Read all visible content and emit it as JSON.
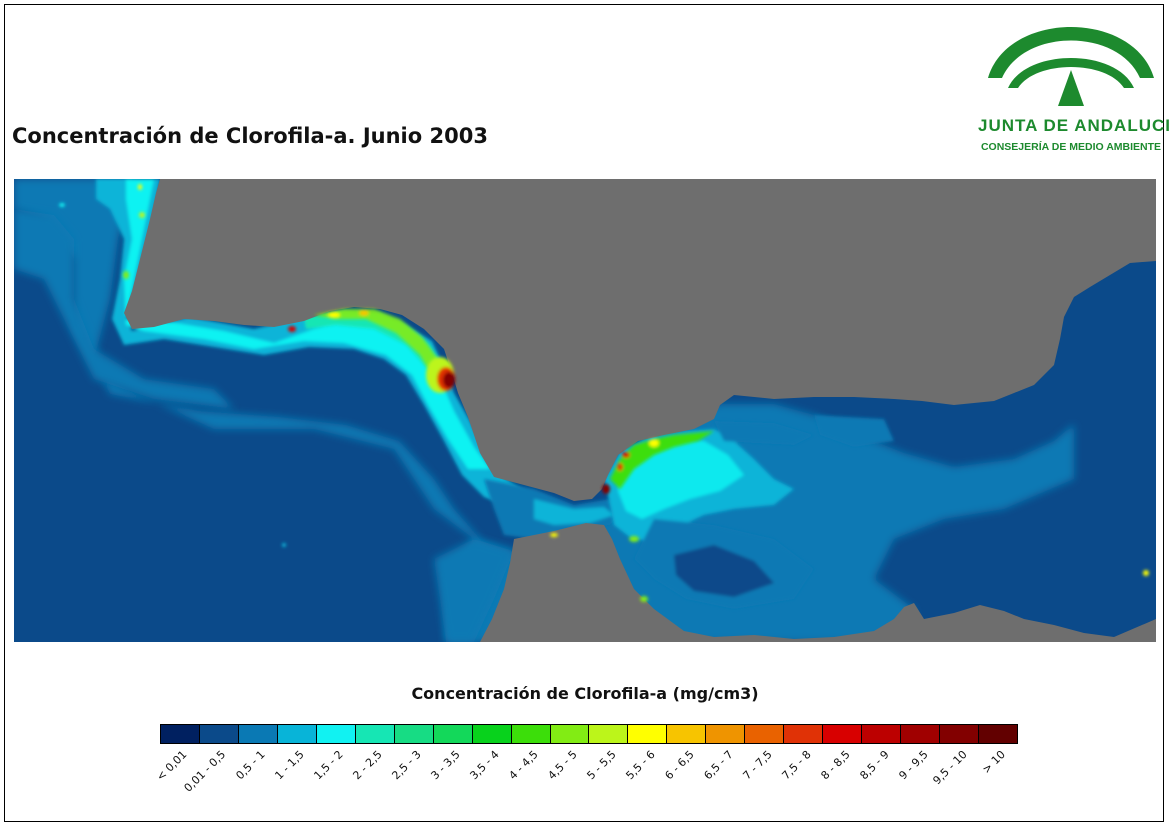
{
  "title": "Concentración de Clorofila-a. Junio 2003",
  "logo": {
    "line1": "JUNTA DE ANDALUCIA",
    "line2": "CONSEJERÍA DE MEDIO AMBIENTE",
    "color": "#1d8a2e"
  },
  "map": {
    "land_color": "#6e6e6e",
    "open_sea_color": "#0b4a8a"
  },
  "legend": {
    "title": "Concentración de Clorofila-a (mg/cm3)",
    "classes": [
      {
        "label": "< 0,01",
        "color": "#002060"
      },
      {
        "label": "0,01 - 0,5",
        "color": "#0b4a8a"
      },
      {
        "label": "0,5 - 1",
        "color": "#0a79b4"
      },
      {
        "label": "1 - 1,5",
        "color": "#08b4d8"
      },
      {
        "label": "1,5 - 2",
        "color": "#11f2f2"
      },
      {
        "label": "2 - 2,5",
        "color": "#16e6b4"
      },
      {
        "label": "2,5 - 3",
        "color": "#17dc84"
      },
      {
        "label": "3 - 3,5",
        "color": "#13d85a"
      },
      {
        "label": "3,5 - 4",
        "color": "#08d21c"
      },
      {
        "label": "4 - 4,5",
        "color": "#3cde0a"
      },
      {
        "label": "4,5 - 5",
        "color": "#82ec14"
      },
      {
        "label": "5 - 5,5",
        "color": "#bcf51a"
      },
      {
        "label": "5,5 - 6",
        "color": "#ffff00"
      },
      {
        "label": "6 - 6,5",
        "color": "#f7c400"
      },
      {
        "label": "6,5 - 7",
        "color": "#ef9400"
      },
      {
        "label": "7 - 7,5",
        "color": "#e96200"
      },
      {
        "label": "7,5 - 8",
        "color": "#e03206"
      },
      {
        "label": "8 - 8,5",
        "color": "#d80000"
      },
      {
        "label": "8,5 - 9",
        "color": "#bc0000"
      },
      {
        "label": "9 - 9,5",
        "color": "#a00000"
      },
      {
        "label": "9,5 - 10",
        "color": "#820000"
      },
      {
        "label": "> 10",
        "color": "#620000"
      }
    ]
  }
}
